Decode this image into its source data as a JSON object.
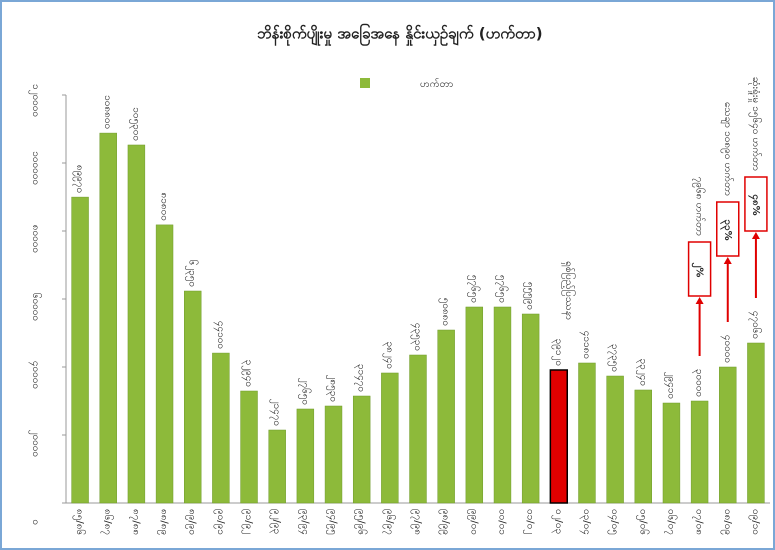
{
  "chart_data": {
    "type": "bar",
    "title": "ဘိန်းစိုက်ပျိုးမှု အခြေအနေ နှိုင်းယှဉ်ချက် (ဟက်တာ)",
    "categories": [
      "၈၅/၈၆",
      "၈၆/၈၇",
      "၈၇/၈၈",
      "၈၈/၈၉",
      "၈၉/၉၀",
      "၉၀/၉၁",
      "၉၁/၉၂",
      "၉၂/၉၃",
      "၉၃/၉၄",
      "၉၄/၉၅",
      "၉၅/၉၆",
      "၉၆/၉၇",
      "၉၇/၉၈",
      "၉၈/၉၉",
      "၉၉/၀၀",
      "၀၀/၀၁",
      "၀၁/၀၂",
      "၀၂/၀၃",
      "၀၃/၀၄",
      "၀၄/၀၅",
      "၀၅/၀၆",
      "၀၆/၀၇",
      "၀၇/၀၈",
      "၀၈/၀၉",
      "၀၉/၁၀"
    ],
    "series": [
      {
        "name": "ဟက်တာ",
        "color": "#8dba3a",
        "values": [
          89970,
          108800,
          105300,
          81800,
          62350,
          44100,
          32940,
          21470,
          27650,
          28530,
          31470,
          38240,
          43530,
          50880,
          57650,
          57650,
          55590,
          39120,
          41180,
          37350,
          33240,
          29410,
          30000,
          40000,
          47060
        ],
        "value_labels": [
          "၈၉၉၇၀",
          "၁၀၈၈၀၀",
          "၁၀၅၃၀၀",
          "၈၁၈၀၀",
          "၆၂၃၅၀",
          "၄၄၁၀၀",
          "၃၂၉၄၀",
          "၂၁၄၇၀",
          "၂၇၆၅၀",
          "၂၈၅၃၀",
          "၃၁၄၇၀",
          "၃၈၂၄၀",
          "၄၃၅၃၀",
          "၅၀၈၈၀",
          "၅၇၆၅၀",
          "၅၇၆၅၀",
          "၅၅၅၉၀",
          "၃၉၁၂၀",
          "၄၁၁၈၀",
          "၃၇၃၅၀",
          "၃၃၂၄၀",
          "၂၉၄၁၀",
          "၃၀၀၀၀",
          "၄၀၀၀၀",
          "၄၇၀၆၀"
        ],
        "colors": [
          "#8dba3a",
          "#8dba3a",
          "#8dba3a",
          "#8dba3a",
          "#8dba3a",
          "#8dba3a",
          "#8dba3a",
          "#8dba3a",
          "#8dba3a",
          "#8dba3a",
          "#8dba3a",
          "#8dba3a",
          "#8dba3a",
          "#8dba3a",
          "#8dba3a",
          "#8dba3a",
          "#8dba3a",
          "#e00000",
          "#8dba3a",
          "#8dba3a",
          "#8dba3a",
          "#8dba3a",
          "#8dba3a",
          "#8dba3a",
          "#8dba3a"
        ]
      }
    ],
    "ylim": [
      0,
      120000
    ],
    "yticks": [
      {
        "value": 0,
        "label": "၀"
      },
      {
        "value": 20000,
        "label": "၂၀၀၀၀"
      },
      {
        "value": 40000,
        "label": "၄၀၀၀၀"
      },
      {
        "value": 60000,
        "label": "၆၀၀၀၀"
      },
      {
        "value": 80000,
        "label": "၈၀၀၀၀"
      },
      {
        "value": 100000,
        "label": "၁၀၀၀၀၀"
      },
      {
        "value": 120000,
        "label": "၁၂၀၀၀၀"
      }
    ],
    "legend": "top",
    "annotations": [
      {
        "text": "ရှစ်ပြည့်ပြဿနာ"
      },
      {
        "text": "၂%",
        "note": "၇၉၆၈ ဟက်တာ"
      },
      {
        "text": "၃၃%",
        "note": "သေချာ ၁၀၈၉၀ ဟက်တာ"
      },
      {
        "text": "၄၈%",
        "note": "ဆုံးရှုံးမှု ၁၅၆၄၀ ဟက်တာ"
      }
    ]
  }
}
